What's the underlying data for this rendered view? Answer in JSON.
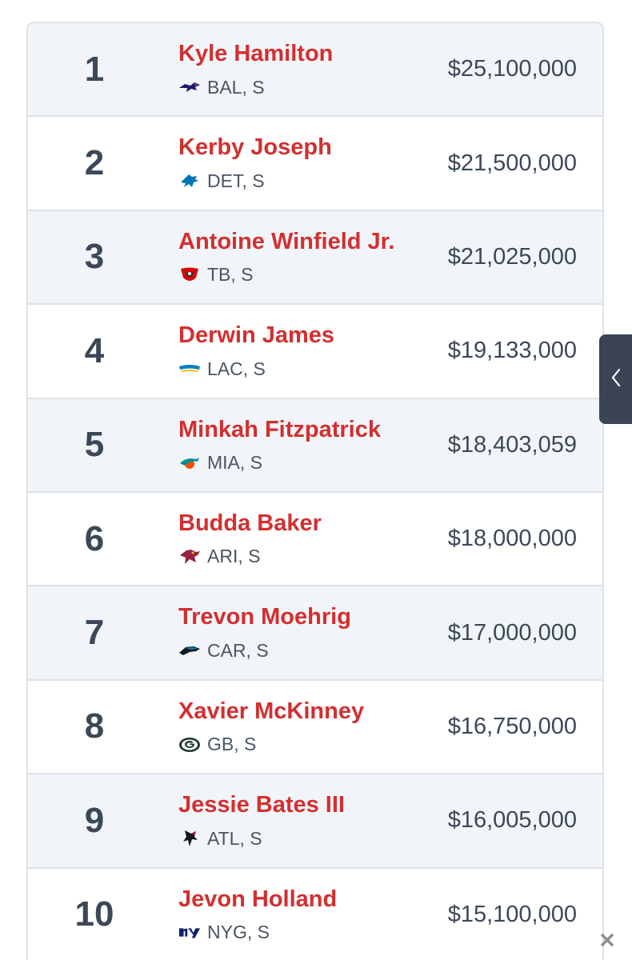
{
  "players": [
    {
      "rank": "1",
      "name": "Kyle Hamilton",
      "team_pos": "BAL, S",
      "salary": "$25,100,000",
      "logo": "ravens-logo-icon"
    },
    {
      "rank": "2",
      "name": "Kerby Joseph",
      "team_pos": "DET, S",
      "salary": "$21,500,000",
      "logo": "lions-logo-icon"
    },
    {
      "rank": "3",
      "name": "Antoine Winfield Jr.",
      "team_pos": "TB, S",
      "salary": "$21,025,000",
      "logo": "buccaneers-logo-icon"
    },
    {
      "rank": "4",
      "name": "Derwin James",
      "team_pos": "LAC, S",
      "salary": "$19,133,000",
      "logo": "chargers-logo-icon"
    },
    {
      "rank": "5",
      "name": "Minkah Fitzpatrick",
      "team_pos": "MIA, S",
      "salary": "$18,403,059",
      "logo": "dolphins-logo-icon"
    },
    {
      "rank": "6",
      "name": "Budda Baker",
      "team_pos": "ARI, S",
      "salary": "$18,000,000",
      "logo": "cardinals-logo-icon"
    },
    {
      "rank": "7",
      "name": "Trevon Moehrig",
      "team_pos": "CAR, S",
      "salary": "$17,000,000",
      "logo": "panthers-logo-icon"
    },
    {
      "rank": "8",
      "name": "Xavier McKinney",
      "team_pos": "GB, S",
      "salary": "$16,750,000",
      "logo": "packers-logo-icon"
    },
    {
      "rank": "9",
      "name": "Jessie Bates III",
      "team_pos": "ATL, S",
      "salary": "$16,005,000",
      "logo": "falcons-logo-icon"
    },
    {
      "rank": "10",
      "name": "Jevon Holland",
      "team_pos": "NYG, S",
      "salary": "$15,100,000",
      "logo": "giants-logo-icon"
    }
  ],
  "colors": {
    "name": "#d32f2f",
    "text": "#3c4858",
    "row_alt": "#f1f5f9",
    "side_tab": "#3a4454"
  },
  "controls": {
    "side_tab_icon": "chevron-left-icon",
    "close_icon": "close-icon"
  }
}
